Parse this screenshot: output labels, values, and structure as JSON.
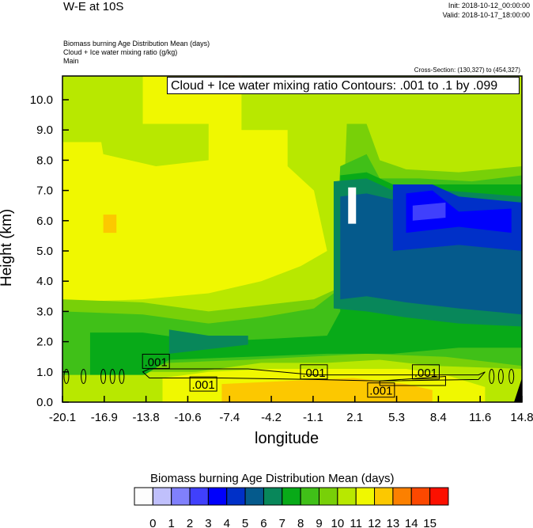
{
  "header": {
    "title": "W-E at 10S",
    "init": "Init: 2018-10-12_00:00:00",
    "valid": "Valid: 2018-10-17_18:00:00",
    "field1": "Biomass burning Age Distribution Mean   (days)",
    "field2": "Cloud + Ice water mixing ratio   (g/kg)",
    "field3": "Main",
    "cross_section": "Cross-Section: (130,327) to (454,327)",
    "contour_info": "Cloud + Ice water mixing ratio Contours: .001 to .1 by .099"
  },
  "chart_data": {
    "type": "heatmap",
    "title": "W-E at 10S",
    "xlabel": "longitude",
    "ylabel": "Height (km)",
    "xlim": [
      -20.1,
      14.8
    ],
    "ylim": [
      0,
      10.8
    ],
    "xticks": [
      "-20.1",
      "-16.9",
      "-13.8",
      "-10.6",
      "-7.4",
      "-4.2",
      "-1.1",
      "2.1",
      "5.3",
      "8.4",
      "11.6",
      "14.8"
    ],
    "yticks": [
      "0.0",
      "1.0",
      "2.0",
      "3.0",
      "4.0",
      "5.0",
      "6.0",
      "7.0",
      "8.0",
      "9.0",
      "10.0"
    ],
    "contour_labels": [
      ".001",
      ".001",
      ".001",
      ".001",
      ".001"
    ],
    "colorbar": {
      "title": "Biomass burning Age Distribution Mean  (days)",
      "labels": [
        "0",
        "1",
        "2",
        "3",
        "4",
        "5",
        "6",
        "7",
        "8",
        "9",
        "10",
        "11",
        "12",
        "13",
        "14",
        "15"
      ],
      "colors": [
        "#fdfdfd",
        "#c0c0fc",
        "#8080fc",
        "#4040fc",
        "#0000fc",
        "#0030c8",
        "#055a8c",
        "#08875a",
        "#08aa18",
        "#40c018",
        "#78d008",
        "#b8e800",
        "#f0f800",
        "#fcc800",
        "#fc8000",
        "#fc4800",
        "#fc1000"
      ]
    }
  }
}
